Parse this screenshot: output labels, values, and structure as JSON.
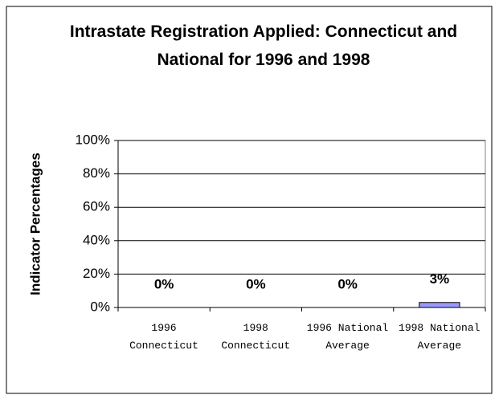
{
  "chart_data": {
    "type": "bar",
    "title": "Intrastate Registration Applied: Connecticut and National for 1996 and 1998",
    "y_label": "Indicator Percentages",
    "categories": [
      "1996 Connecticut",
      "1998 Connecticut",
      "1996 National Average",
      "1998 National Average"
    ],
    "values": [
      0,
      0,
      0,
      3
    ],
    "value_labels": [
      "0%",
      "0%",
      "0%",
      "3%"
    ],
    "color": "#9999ff",
    "ylim": [
      0,
      100
    ],
    "yticks": [
      {
        "value": 0,
        "label": "0%"
      },
      {
        "value": 20,
        "label": "20%"
      },
      {
        "value": 40,
        "label": "40%"
      },
      {
        "value": 60,
        "label": "60%"
      },
      {
        "value": 80,
        "label": "80%"
      },
      {
        "value": 100,
        "label": "100%"
      }
    ],
    "grid": true
  }
}
